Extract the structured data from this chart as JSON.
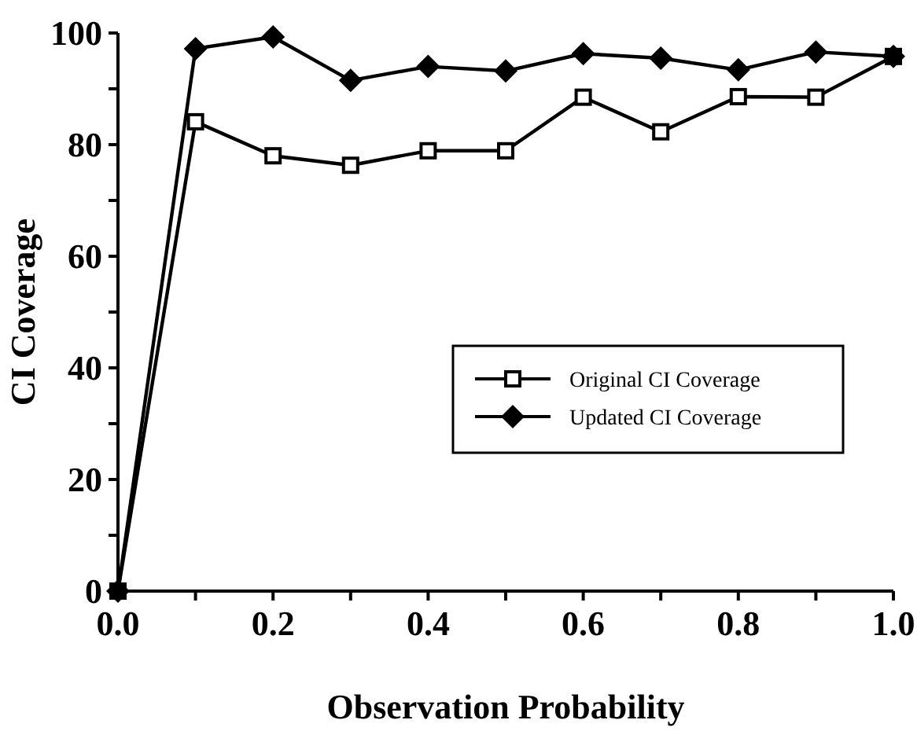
{
  "chart_data": {
    "type": "line",
    "xlabel": "Observation Probability",
    "ylabel": "CI Coverage",
    "x": [
      0,
      0.1,
      0.2,
      0.3,
      0.4,
      0.5,
      0.6,
      0.7,
      0.8,
      0.9,
      1.0
    ],
    "series": [
      {
        "name": "Original CI Coverage",
        "color": "#000000",
        "marker": "square",
        "values": [
          0,
          84.1,
          78,
          76.3,
          78.9,
          78.9,
          88.5,
          82.3,
          88.6,
          88.5,
          95.8
        ]
      },
      {
        "name": "Updated CI Coverage",
        "color": "#000000",
        "marker": "diamond",
        "values": [
          0,
          97.2,
          99.3,
          91.5,
          94,
          93.2,
          96.3,
          95.5,
          93.4,
          96.6,
          95.8
        ]
      }
    ],
    "xlim": [
      0,
      1
    ],
    "ylim": [
      0,
      100
    ],
    "xticks": [
      {
        "value": 0,
        "label": "0.0"
      },
      {
        "value": 0.1,
        "label": null
      },
      {
        "value": 0.2,
        "label": "0.2"
      },
      {
        "value": 0.3,
        "label": null
      },
      {
        "value": 0.4,
        "label": "0.4"
      },
      {
        "value": 0.5,
        "label": null
      },
      {
        "value": 0.6,
        "label": "0.6"
      },
      {
        "value": 0.7,
        "label": null
      },
      {
        "value": 0.8,
        "label": "0.8"
      },
      {
        "value": 0.9,
        "label": null
      },
      {
        "value": 1,
        "label": "1.0"
      }
    ],
    "yticks": [
      0,
      {
        "value": 10,
        "label": null
      },
      20,
      {
        "value": 30,
        "label": null
      },
      40,
      {
        "value": 50,
        "label": null
      },
      60,
      {
        "value": 70,
        "label": null
      },
      80,
      {
        "value": 90,
        "label": null
      },
      100
    ],
    "legend": "right",
    "grid": false,
    "line_style": "solid"
  }
}
